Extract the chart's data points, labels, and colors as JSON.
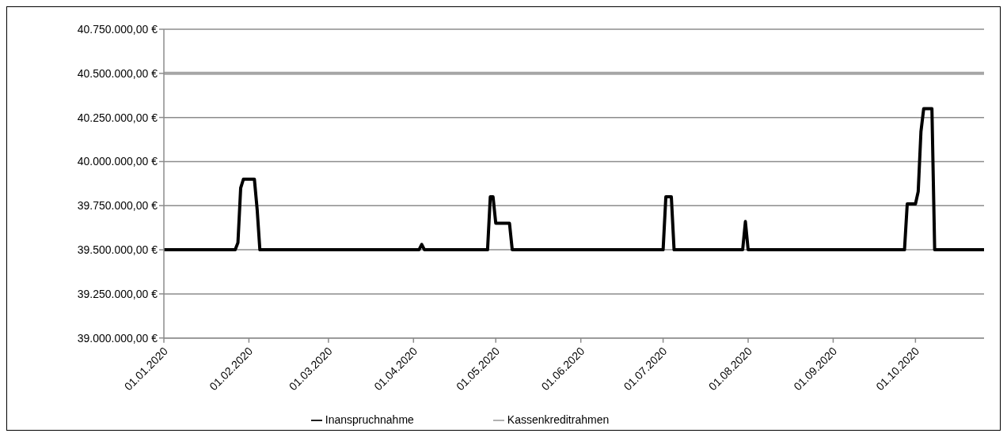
{
  "chart_data": {
    "type": "line",
    "xlim": [
      "2020-01-01",
      "2020-10-26"
    ],
    "xticks": [
      {
        "value": "2020-01-01",
        "label": "01.01.2020"
      },
      {
        "value": "2020-02-01",
        "label": "01.02.2020"
      },
      {
        "value": "2020-03-01",
        "label": "01.03.2020"
      },
      {
        "value": "2020-04-01",
        "label": "01.04.2020"
      },
      {
        "value": "2020-05-01",
        "label": "01.05.2020"
      },
      {
        "value": "2020-06-01",
        "label": "01.06.2020"
      },
      {
        "value": "2020-07-01",
        "label": "01.07.2020"
      },
      {
        "value": "2020-08-01",
        "label": "01.08.2020"
      },
      {
        "value": "2020-09-01",
        "label": "01.09.2020"
      },
      {
        "value": "2020-10-01",
        "label": "01.10.2020"
      }
    ],
    "ylim": [
      39000000,
      40750000
    ],
    "yticks": [
      {
        "value": 39000000,
        "label": "39.000.000,00 €"
      },
      {
        "value": 39250000,
        "label": "39.250.000,00 €"
      },
      {
        "value": 39500000,
        "label": "39.500.000,00 €"
      },
      {
        "value": 39750000,
        "label": "39.750.000,00 €"
      },
      {
        "value": 40000000,
        "label": "40.000.000,00 €"
      },
      {
        "value": 40250000,
        "label": "40.250.000,00 €"
      },
      {
        "value": 40500000,
        "label": "40.500.000,00 €"
      },
      {
        "value": 40750000,
        "label": "40.750.000,00 €"
      }
    ],
    "grid": "y",
    "legend": "bottom",
    "marker": "none",
    "line_style": "solid",
    "series": [
      {
        "name": "Kassenkreditrahmen",
        "color": "#a6a6a6",
        "x": [
          "2020-01-01",
          "2020-10-26"
        ],
        "values": [
          40500000,
          40500000
        ]
      },
      {
        "name": "Inanspruchnahme",
        "color": "#000000",
        "x": [
          "2020-01-01",
          "2020-01-27",
          "2020-01-28",
          "2020-01-29",
          "2020-01-30",
          "2020-02-03",
          "2020-02-04",
          "2020-02-05",
          "2020-04-03",
          "2020-04-04",
          "2020-04-05",
          "2020-04-28",
          "2020-04-29",
          "2020-04-30",
          "2020-05-01",
          "2020-05-06",
          "2020-05-07",
          "2020-07-01",
          "2020-07-02",
          "2020-07-04",
          "2020-07-05",
          "2020-07-30",
          "2020-07-31",
          "2020-08-01",
          "2020-09-27",
          "2020-09-28",
          "2020-10-01",
          "2020-10-02",
          "2020-10-03",
          "2020-10-04",
          "2020-10-07",
          "2020-10-08",
          "2020-10-26"
        ],
        "values": [
          39500000,
          39500000,
          39540000,
          39850000,
          39900000,
          39900000,
          39730000,
          39500000,
          39500000,
          39530000,
          39500000,
          39500000,
          39800000,
          39800000,
          39650000,
          39650000,
          39500000,
          39500000,
          39800000,
          39800000,
          39500000,
          39500000,
          39660000,
          39500000,
          39500000,
          39760000,
          39760000,
          39830000,
          40170000,
          40300000,
          40300000,
          39500000,
          39500000
        ]
      }
    ]
  }
}
